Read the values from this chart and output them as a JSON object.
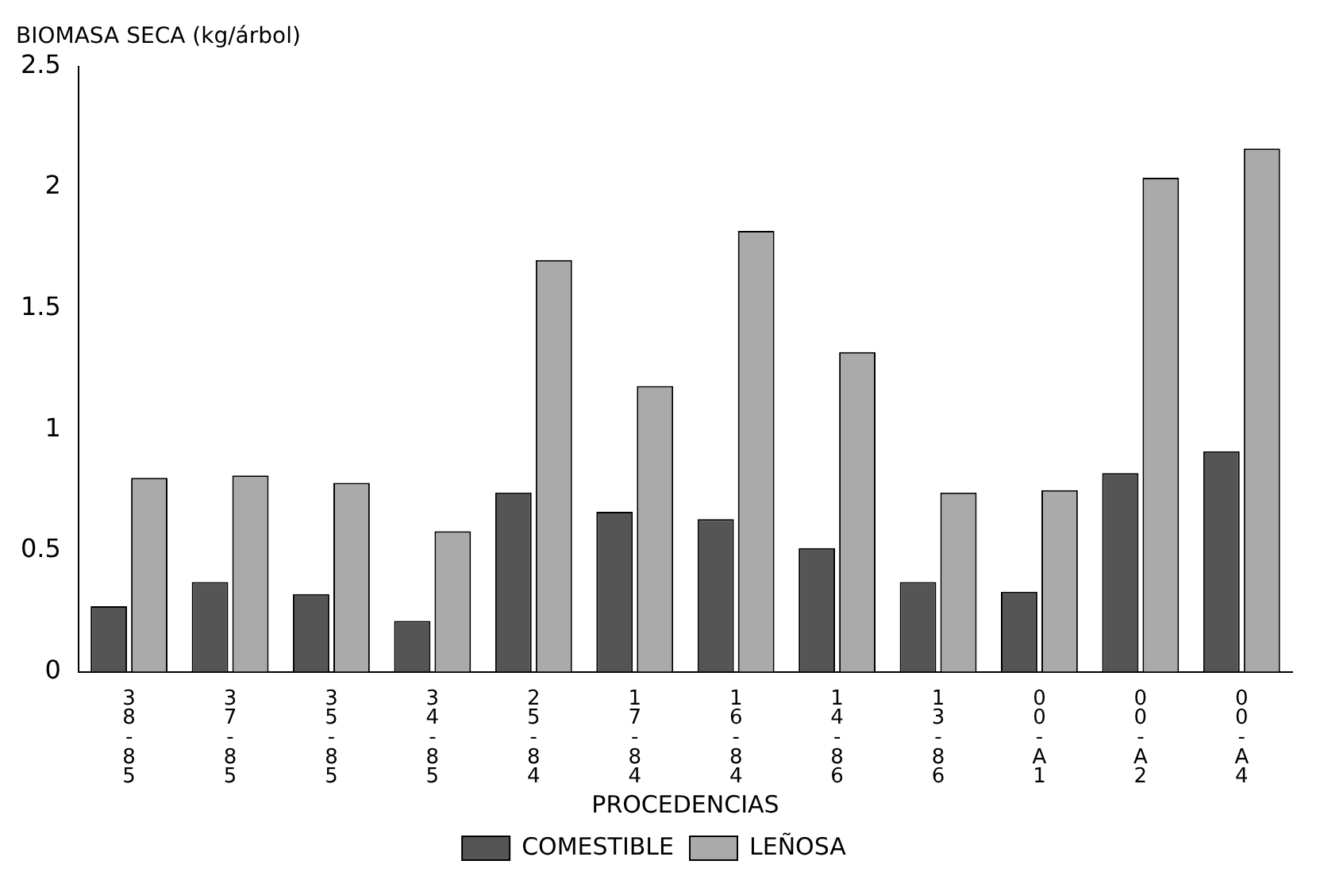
{
  "chart_data": {
    "type": "bar",
    "title": "BIOMASA SECA (kg/árbol)",
    "xlabel": "PROCEDENCIAS",
    "categories": [
      "38-85",
      "37-85",
      "35-85",
      "34-85",
      "25-84",
      "17-84",
      "16-84",
      "14-86",
      "13-86",
      "00-A1",
      "00-A2",
      "00-A4"
    ],
    "series": [
      {
        "name": "COMESTIBLE",
        "color": "#555555",
        "values": [
          0.27,
          0.37,
          0.32,
          0.21,
          0.74,
          0.66,
          0.63,
          0.51,
          0.37,
          0.33,
          0.82,
          0.91
        ]
      },
      {
        "name": "LEÑOSA",
        "color": "#aaaaaa",
        "values": [
          0.8,
          0.81,
          0.78,
          0.58,
          1.7,
          1.18,
          1.82,
          1.32,
          0.74,
          0.75,
          2.04,
          2.16
        ]
      }
    ],
    "ylim": [
      0,
      2.5
    ],
    "yticks": [
      0,
      0.5,
      1,
      1.5,
      2,
      2.5
    ],
    "grid": false,
    "legend": "bottom"
  }
}
